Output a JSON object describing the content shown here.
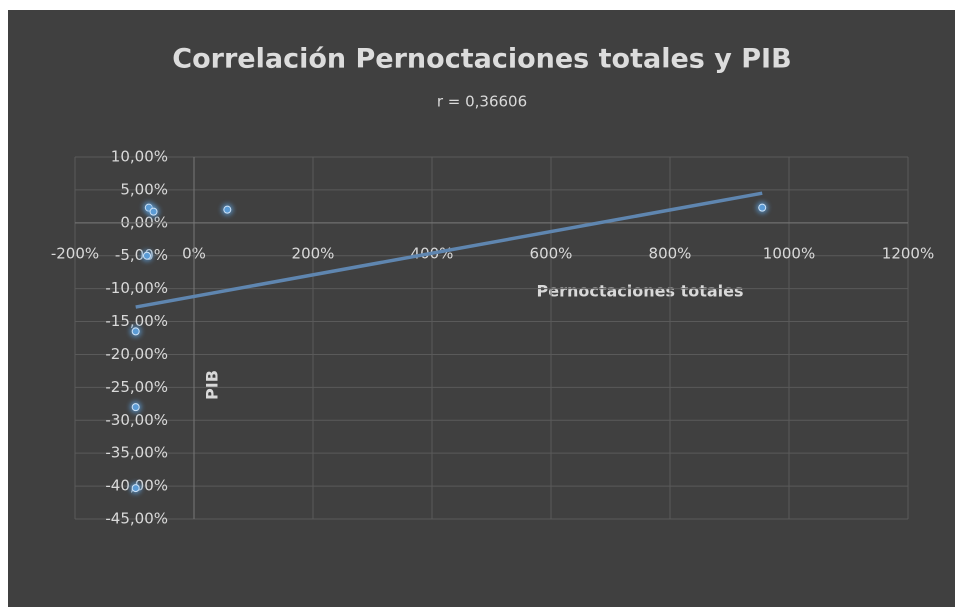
{
  "chart_data": {
    "type": "scatter",
    "title": "Correlación Pernoctaciones totales y PIB",
    "subtitle": "r = 0,36606",
    "x_label": "Pernoctaciones totales",
    "y_label": "PIB",
    "color": "#5b9bd5",
    "x": [
      -76,
      -68,
      56,
      -79,
      -98,
      -98,
      -98,
      955
    ],
    "values": [
      2.3,
      1.7,
      2.0,
      -5.0,
      -16.5,
      -28.0,
      -40.3,
      2.3
    ],
    "trendline": {
      "x": [
        -98,
        955
      ],
      "y": [
        -12.8,
        4.5
      ],
      "color": "#5f86b0"
    },
    "xlim": [
      -200,
      1200
    ],
    "xticks": [
      {
        "value": -200,
        "label": "-200%"
      },
      {
        "value": 0,
        "label": "0%"
      },
      {
        "value": 200,
        "label": "200%"
      },
      {
        "value": 400,
        "label": "400%"
      },
      {
        "value": 600,
        "label": "600%"
      },
      {
        "value": 800,
        "label": "800%"
      },
      {
        "value": 1000,
        "label": "1000%"
      },
      {
        "value": 1200,
        "label": "1200%"
      }
    ],
    "ylim": [
      -45,
      10
    ],
    "yticks": [
      {
        "value": 10,
        "label": "10,00%"
      },
      {
        "value": 5,
        "label": "5,00%"
      },
      {
        "value": 0,
        "label": "0,00%"
      },
      {
        "value": -5,
        "label": "-5,00%"
      },
      {
        "value": -10,
        "label": "-10,00%"
      },
      {
        "value": -15,
        "label": "-15,00%"
      },
      {
        "value": -20,
        "label": "-20,00%"
      },
      {
        "value": -25,
        "label": "-25,00%"
      },
      {
        "value": -30,
        "label": "-30,00%"
      },
      {
        "value": -35,
        "label": "-35,00%"
      },
      {
        "value": -40,
        "label": "-40,00%"
      },
      {
        "value": -45,
        "label": "-45,00%"
      }
    ],
    "grid": true
  }
}
